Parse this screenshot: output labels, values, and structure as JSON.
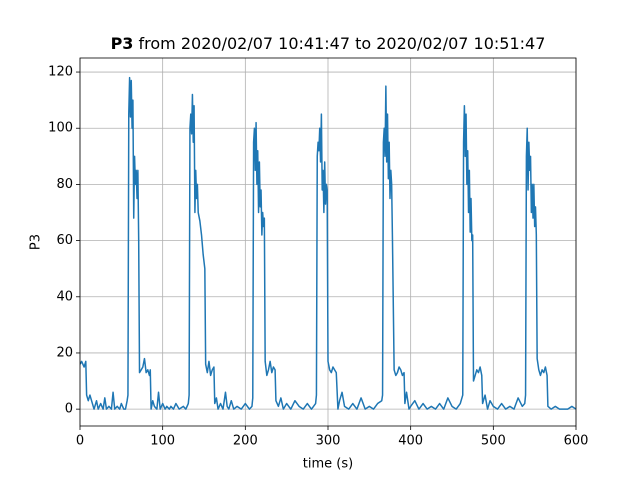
{
  "chart_data": {
    "type": "line",
    "title_parts": [
      "P3",
      "from 2020/02/07 10:41:47 to 2020/02/07 10:51:47"
    ],
    "xlabel": "time (s)",
    "ylabel": "P3",
    "xlim": [
      0,
      600
    ],
    "xticks": [
      0,
      100,
      200,
      300,
      400,
      500,
      600
    ],
    "ylim": [
      -6,
      125
    ],
    "yticks": [
      0,
      20,
      40,
      60,
      80,
      100,
      120
    ],
    "grid": true,
    "color": "#1f77b4",
    "x": [
      0,
      2,
      5,
      7,
      8,
      10,
      12,
      15,
      17,
      20,
      22,
      25,
      28,
      30,
      32,
      35,
      38,
      40,
      42,
      45,
      48,
      50,
      53,
      55,
      57,
      58,
      59,
      60,
      61,
      62,
      63,
      64,
      65,
      66,
      67,
      68,
      69,
      70,
      71,
      72,
      74,
      76,
      78,
      80,
      82,
      84,
      85,
      86,
      88,
      90,
      93,
      95,
      97,
      100,
      103,
      105,
      108,
      110,
      113,
      116,
      120,
      125,
      128,
      131,
      132,
      133,
      134,
      135,
      136,
      137,
      138,
      139,
      140,
      141,
      142,
      143,
      145,
      147,
      149,
      151,
      152,
      154,
      156,
      158,
      160,
      162,
      163,
      165,
      167,
      170,
      173,
      176,
      178,
      180,
      183,
      186,
      190,
      195,
      200,
      205,
      208,
      209,
      210,
      211,
      212,
      213,
      214,
      215,
      216,
      217,
      218,
      219,
      220,
      221,
      222,
      223,
      224,
      226,
      228,
      230,
      232,
      234,
      236,
      237,
      240,
      243,
      246,
      250,
      255,
      260,
      265,
      270,
      275,
      280,
      285,
      286,
      287,
      288,
      289,
      290,
      291,
      292,
      293,
      294,
      295,
      296,
      297,
      298,
      299,
      300,
      302,
      304,
      306,
      308,
      310,
      312,
      314,
      317,
      320,
      325,
      330,
      335,
      340,
      345,
      350,
      355,
      360,
      365,
      366,
      367,
      368,
      369,
      370,
      371,
      372,
      373,
      374,
      375,
      376,
      377,
      378,
      380,
      382,
      384,
      386,
      388,
      390,
      392,
      393,
      395,
      398,
      400,
      405,
      410,
      415,
      420,
      425,
      430,
      435,
      440,
      445,
      450,
      455,
      460,
      463,
      464,
      465,
      466,
      467,
      468,
      469,
      470,
      471,
      472,
      473,
      474,
      475,
      476,
      478,
      480,
      482,
      484,
      486,
      487,
      490,
      493,
      496,
      500,
      505,
      510,
      515,
      520,
      525,
      530,
      535,
      538,
      539,
      540,
      541,
      542,
      543,
      544,
      545,
      546,
      547,
      548,
      549,
      550,
      551,
      552,
      553,
      555,
      557,
      559,
      561,
      563,
      565,
      566,
      570,
      575,
      580,
      585,
      590,
      595,
      600
    ],
    "values": [
      16,
      17,
      15,
      17,
      5,
      3,
      5,
      2,
      0,
      3,
      0,
      2,
      0,
      4,
      0,
      1,
      0,
      6,
      0,
      1,
      0,
      2,
      0,
      0,
      3,
      5,
      105,
      118,
      104,
      117,
      100,
      110,
      68,
      90,
      80,
      85,
      75,
      85,
      60,
      13,
      14,
      15,
      18,
      13,
      14,
      12,
      14,
      0,
      3,
      1,
      0,
      6,
      0,
      2,
      0,
      1,
      0,
      1,
      0,
      2,
      0,
      1,
      0,
      2,
      5,
      100,
      105,
      98,
      112,
      95,
      108,
      70,
      85,
      75,
      80,
      70,
      67,
      62,
      55,
      50,
      16,
      13,
      17,
      12,
      14,
      15,
      2,
      4,
      0,
      2,
      0,
      6,
      1,
      0,
      3,
      0,
      1,
      0,
      2,
      0,
      1,
      4,
      95,
      100,
      85,
      102,
      80,
      92,
      70,
      88,
      72,
      78,
      62,
      70,
      65,
      68,
      17,
      12,
      14,
      17,
      13,
      15,
      14,
      3,
      1,
      4,
      0,
      2,
      0,
      3,
      1,
      0,
      2,
      0,
      2,
      5,
      90,
      95,
      92,
      100,
      88,
      105,
      78,
      85,
      70,
      88,
      73,
      80,
      78,
      17,
      14,
      13,
      15,
      14,
      13,
      0,
      3,
      6,
      1,
      0,
      2,
      0,
      4,
      0,
      1,
      0,
      2,
      3,
      5,
      95,
      100,
      90,
      115,
      88,
      105,
      82,
      95,
      75,
      85,
      80,
      60,
      14,
      12,
      13,
      15,
      14,
      12,
      13,
      2,
      6,
      0,
      1,
      3,
      0,
      2,
      0,
      1,
      0,
      2,
      0,
      4,
      1,
      0,
      2,
      5,
      95,
      108,
      90,
      105,
      80,
      92,
      70,
      85,
      63,
      75,
      60,
      62,
      10,
      12,
      14,
      13,
      15,
      12,
      2,
      5,
      0,
      3,
      1,
      0,
      2,
      0,
      1,
      0,
      4,
      1,
      2,
      5,
      90,
      100,
      78,
      95,
      85,
      90,
      70,
      80,
      68,
      80,
      65,
      72,
      62,
      18,
      14,
      12,
      14,
      13,
      15,
      12,
      1,
      0,
      1,
      0,
      0,
      0,
      1,
      0
    ]
  }
}
